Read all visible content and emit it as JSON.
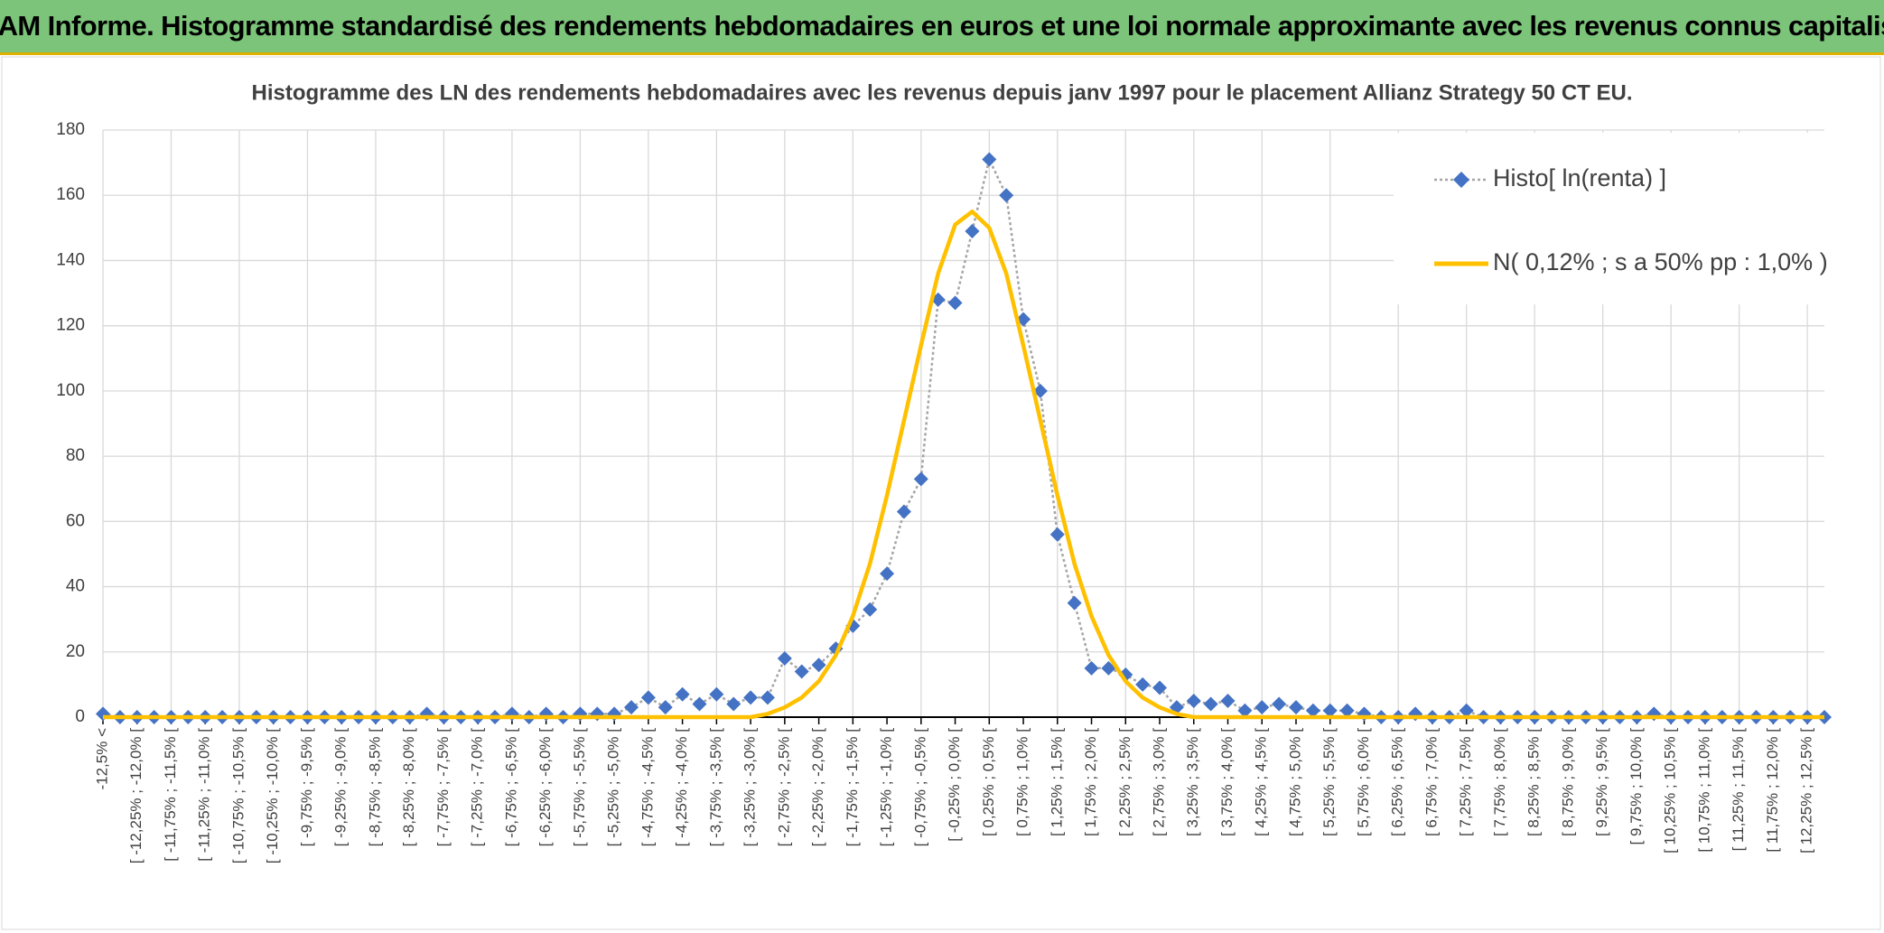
{
  "header": {
    "title": "ADAM Informe. Histogramme standardisé des rendements hebdomadaires en euros et une loi normale approximante avec les revenus connus capitalisés"
  },
  "chart_data": {
    "type": "line",
    "title": "Histogramme des LN des rendements hebdomadaires avec les revenus depuis janv 1997 pour le placement Allianz Strategy 50 CT EU.",
    "categories": [
      "-12,5% <",
      null,
      "[ -12,25% ; -12,0% [",
      null,
      "[ -11,75% ; -11,5% [",
      null,
      "[ -11,25% ; -11,0% [",
      null,
      "[ -10,75% ; -10,5% [",
      null,
      "[ -10,25% ; -10,0% [",
      null,
      "[ -9,75% ; -9,5% [",
      null,
      "[ -9,25% ; -9,0% [",
      null,
      "[ -8,75% ; -8,5% [",
      null,
      "[ -8,25% ; -8,0% [",
      null,
      "[ -7,75% ; -7,5% [",
      null,
      "[ -7,25% ; -7,0% [",
      null,
      "[ -6,75% ; -6,5% [",
      null,
      "[ -6,25% ; -6,0% [",
      null,
      "[ -5,75% ; -5,5% [",
      null,
      "[ -5,25% ; -5,0% [",
      null,
      "[ -4,75% ; -4,5% [",
      null,
      "[ -4,25% ; -4,0% [",
      null,
      "[ -3,75% ; -3,5% [",
      null,
      "[ -3,25% ; -3,0% [",
      null,
      "[ -2,75% ; -2,5% [",
      null,
      "[ -2,25% ; -2,0% [",
      null,
      "[ -1,75% ; -1,5% [",
      null,
      "[ -1,25% ; -1,0% [",
      null,
      "[ -0,75% ; -0,5% [",
      null,
      "[ -0,25% ; 0,0% [",
      null,
      "[ 0,25% ; 0,5% [",
      null,
      "[ 0,75% ; 1,0% [",
      null,
      "[ 1,25% ; 1,5% [",
      null,
      "[ 1,75% ; 2,0% [",
      null,
      "[ 2,25% ; 2,5% [",
      null,
      "[ 2,75% ; 3,0% [",
      null,
      "[ 3,25% ; 3,5% [",
      null,
      "[ 3,75% ; 4,0% [",
      null,
      "[ 4,25% ; 4,5% [",
      null,
      "[ 4,75% ; 5,0% [",
      null,
      "[ 5,25% ; 5,5% [",
      null,
      "[ 5,75% ; 6,0% [",
      null,
      "[ 6,25% ; 6,5% [",
      null,
      "[ 6,75% ; 7,0% [",
      null,
      "[ 7,25% ; 7,5% [",
      null,
      "[ 7,75% ; 8,0% [",
      null,
      "[ 8,25% ; 8,5% [",
      null,
      "[ 8,75% ; 9,0% [",
      null,
      "[ 9,25% ; 9,5% [",
      null,
      "[ 9,75% ; 10,0% [",
      null,
      "[ 10,25% ; 10,5% [",
      null,
      "[ 10,75% ; 11,0% [",
      null,
      "[ 11,25% ; 11,5% [",
      null,
      "[ 11,75% ; 12,0% [",
      null,
      "[ 12,25% ; 12,5% [",
      null
    ],
    "series": [
      {
        "name": "Histo[ ln(renta) ]",
        "color": "#4472c4",
        "line_color": "#a5a5a5",
        "values": [
          1,
          0,
          0,
          0,
          0,
          0,
          0,
          0,
          0,
          0,
          0,
          0,
          0,
          0,
          0,
          0,
          0,
          0,
          0,
          1,
          0,
          0,
          0,
          0,
          1,
          0,
          1,
          0,
          1,
          1,
          1,
          3,
          6,
          3,
          7,
          4,
          7,
          4,
          6,
          6,
          18,
          14,
          16,
          21,
          28,
          33,
          44,
          63,
          73,
          128,
          127,
          149,
          171,
          160,
          122,
          100,
          56,
          35,
          15,
          15,
          13,
          10,
          9,
          3,
          5,
          4,
          5,
          2,
          3,
          4,
          3,
          2,
          2,
          2,
          1,
          0,
          0,
          1,
          0,
          0,
          2,
          0,
          0,
          0,
          0,
          0,
          0,
          0,
          0,
          0,
          0,
          1,
          0,
          0,
          0,
          0,
          0,
          0,
          0,
          0,
          0,
          0
        ]
      },
      {
        "name": "N( 0,12% ; s a 50% pp : 1,0% )",
        "color": "#ffc000",
        "values": [
          0,
          0,
          0,
          0,
          0,
          0,
          0,
          0,
          0,
          0,
          0,
          0,
          0,
          0,
          0,
          0,
          0,
          0,
          0,
          0,
          0,
          0,
          0,
          0,
          0,
          0,
          0,
          0,
          0,
          0,
          0,
          0,
          0,
          0,
          0,
          0,
          0,
          0,
          0,
          1,
          3,
          6,
          11,
          19,
          31,
          47,
          68,
          91,
          114,
          136,
          151,
          155,
          150,
          136,
          114,
          91,
          68,
          47,
          31,
          19,
          11,
          6,
          3,
          1,
          0,
          0,
          0,
          0,
          0,
          0,
          0,
          0,
          0,
          0,
          0,
          0,
          0,
          0,
          0,
          0,
          0,
          0,
          0,
          0,
          0,
          0,
          0,
          0,
          0,
          0,
          0,
          0,
          0,
          0,
          0,
          0,
          0,
          0,
          0,
          0,
          0,
          0
        ]
      }
    ],
    "ylim": [
      0,
      180
    ],
    "yticks": [
      0,
      20,
      40,
      60,
      80,
      100,
      120,
      140,
      160,
      180
    ],
    "grid": true,
    "legend": "top-right"
  }
}
